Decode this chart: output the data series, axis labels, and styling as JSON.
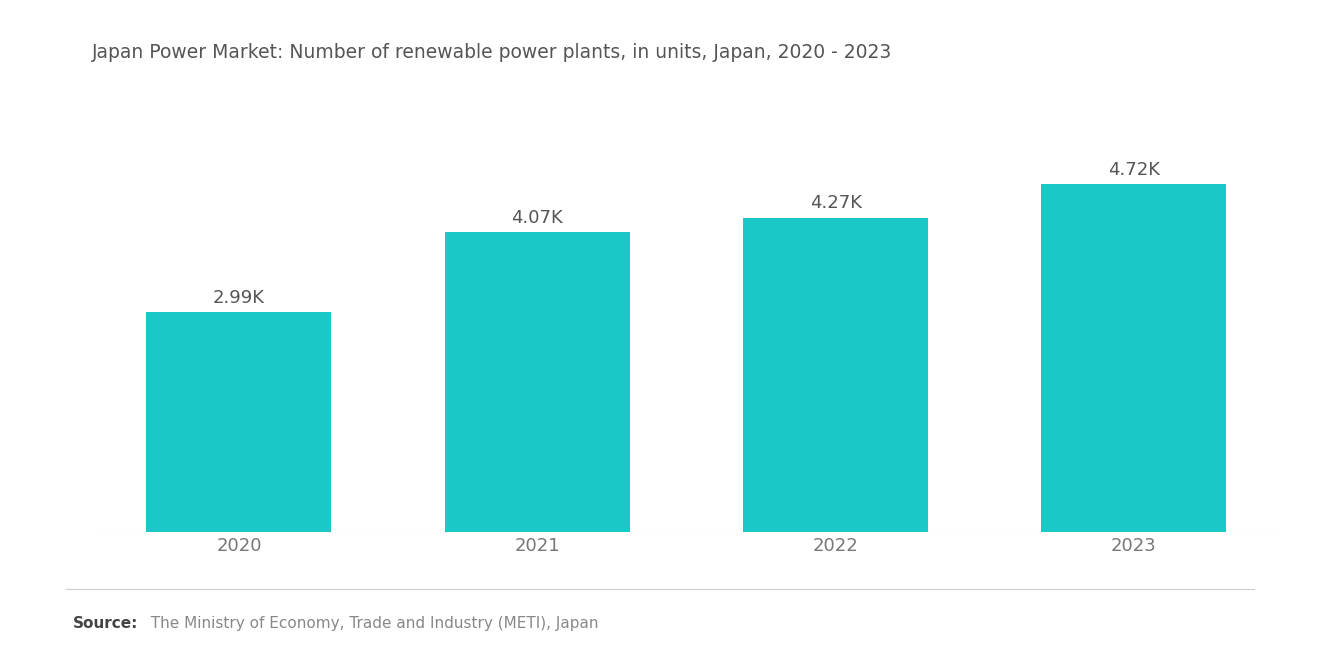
{
  "title": "Japan Power Market: Number of renewable power plants, in units, Japan, 2020 - 2023",
  "categories": [
    "2020",
    "2021",
    "2022",
    "2023"
  ],
  "values": [
    2.99,
    4.07,
    4.27,
    4.72
  ],
  "labels": [
    "2.99K",
    "4.07K",
    "4.27K",
    "4.72K"
  ],
  "bar_color": "#1AC8C8",
  "background_color": "#FFFFFF",
  "source_bold": "Source:",
  "source_text": "  The Ministry of Economy, Trade and Industry (METI), Japan",
  "ylim": [
    0,
    5.6
  ],
  "title_fontsize": 13.5,
  "label_fontsize": 13,
  "tick_fontsize": 13,
  "source_fontsize": 11,
  "bar_width": 0.62,
  "title_color": "#555555",
  "tick_color": "#777777",
  "label_color": "#555555",
  "source_color": "#888888",
  "source_bold_color": "#444444"
}
